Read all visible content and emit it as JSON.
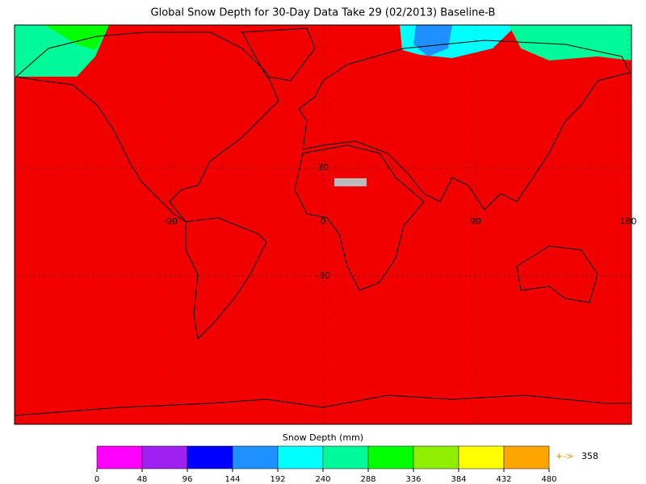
{
  "title": "Global Snow Depth for 30-Day Data Take 29 (02/2013) Baseline-B",
  "map": {
    "fill_color": "#f20000",
    "lon_labels": [
      -90,
      0,
      90,
      180
    ],
    "lat_labels": [
      30,
      -30
    ]
  },
  "colorbar": {
    "label": "Snow Depth (mm)",
    "ticks": [
      0,
      48,
      96,
      144,
      192,
      240,
      288,
      336,
      384,
      432,
      480
    ],
    "colors": [
      "#ff00ff",
      "#a020f0",
      "#0000ff",
      "#1e90ff",
      "#00ffff",
      "#00fa9a",
      "#00ff00",
      "#90ee00",
      "#ffff00",
      "#ffa500"
    ],
    "max_marker": "+->",
    "max_value": 358
  }
}
